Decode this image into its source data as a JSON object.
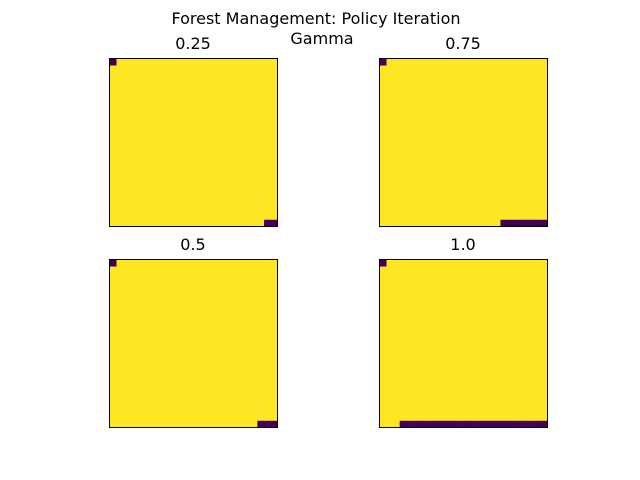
{
  "title": "Forest Management: Policy Iteration",
  "subtitle": "Gamma",
  "colors": {
    "action_0": "#fde725",
    "action_1": "#440154",
    "frame": "#000000",
    "background": "#ffffff"
  },
  "chart_data": [
    {
      "type": "heatmap",
      "title": "0.25",
      "grid_size": 25,
      "axes_ticks": false,
      "description_of_values": "policy action per state; 0 = wait (yellow), 1 = cut (purple)",
      "cells_value_1": [
        [
          0,
          0
        ],
        [
          24,
          23
        ],
        [
          24,
          24
        ]
      ]
    },
    {
      "type": "heatmap",
      "title": "0.75",
      "grid_size": 25,
      "axes_ticks": false,
      "cells_value_1": [
        [
          0,
          0
        ],
        [
          24,
          18
        ],
        [
          24,
          19
        ],
        [
          24,
          20
        ],
        [
          24,
          21
        ],
        [
          24,
          22
        ],
        [
          24,
          23
        ],
        [
          24,
          24
        ]
      ]
    },
    {
      "type": "heatmap",
      "title": "0.5",
      "grid_size": 25,
      "axes_ticks": false,
      "cells_value_1": [
        [
          0,
          0
        ],
        [
          24,
          22
        ],
        [
          24,
          23
        ],
        [
          24,
          24
        ]
      ]
    },
    {
      "type": "heatmap",
      "title": "1.0",
      "grid_size": 25,
      "axes_ticks": false,
      "cells_value_1": [
        [
          0,
          0
        ],
        [
          24,
          3
        ],
        [
          24,
          4
        ],
        [
          24,
          5
        ],
        [
          24,
          6
        ],
        [
          24,
          7
        ],
        [
          24,
          8
        ],
        [
          24,
          9
        ],
        [
          24,
          10
        ],
        [
          24,
          11
        ],
        [
          24,
          12
        ],
        [
          24,
          13
        ],
        [
          24,
          14
        ],
        [
          24,
          15
        ],
        [
          24,
          16
        ],
        [
          24,
          17
        ],
        [
          24,
          18
        ],
        [
          24,
          19
        ],
        [
          24,
          20
        ],
        [
          24,
          21
        ],
        [
          24,
          22
        ],
        [
          24,
          23
        ],
        [
          24,
          24
        ]
      ]
    }
  ]
}
